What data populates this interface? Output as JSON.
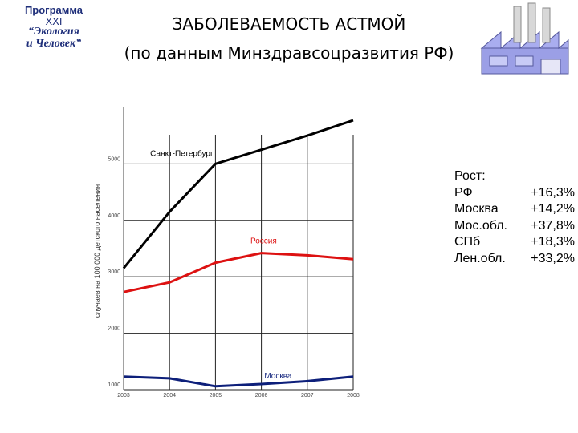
{
  "logo": {
    "line1": "Программа",
    "line2": "XXI",
    "line3": "“Экология",
    "line4": "и Человек”"
  },
  "title": {
    "line1": "ЗАБОЛЕВАЕМОСТЬ АСТМОЙ",
    "line2": "(по данным Минздравсоцразвития РФ)"
  },
  "stats": {
    "heading": "Рост:",
    "rows": [
      {
        "name": "РФ",
        "value": "+16,3%"
      },
      {
        "name": "Москва",
        "value": "+14,2%"
      },
      {
        "name": "Мос.обл.",
        "value": "+37,8%"
      },
      {
        "name": "СПб",
        "value": "+18,3%"
      },
      {
        "name": "Лен.обл.",
        "value": "+33,2%"
      }
    ]
  },
  "chart_data": {
    "type": "line",
    "ylabel": "случаев на 100 000 детского населения",
    "x": [
      "2003",
      "2004",
      "2005",
      "2006",
      "2007",
      "2008"
    ],
    "yticks": [
      1000,
      2000,
      3000,
      4000,
      5000
    ],
    "ylim": [
      1000,
      5800
    ],
    "grid": true,
    "series": [
      {
        "name": "Санкт-Петербург",
        "color": "#000000",
        "values": [
          3150,
          4150,
          5000,
          5250,
          5500,
          5770
        ]
      },
      {
        "name": "Россия",
        "color": "#dd1111",
        "values": [
          2730,
          2900,
          3250,
          3420,
          3380,
          3310
        ]
      },
      {
        "name": "Москва",
        "color": "#0d1f7a",
        "values": [
          1230,
          1200,
          1060,
          1100,
          1150,
          1230
        ]
      }
    ],
    "series_label_positions": [
      "above-middle",
      "above-middle",
      "above-middle"
    ]
  }
}
